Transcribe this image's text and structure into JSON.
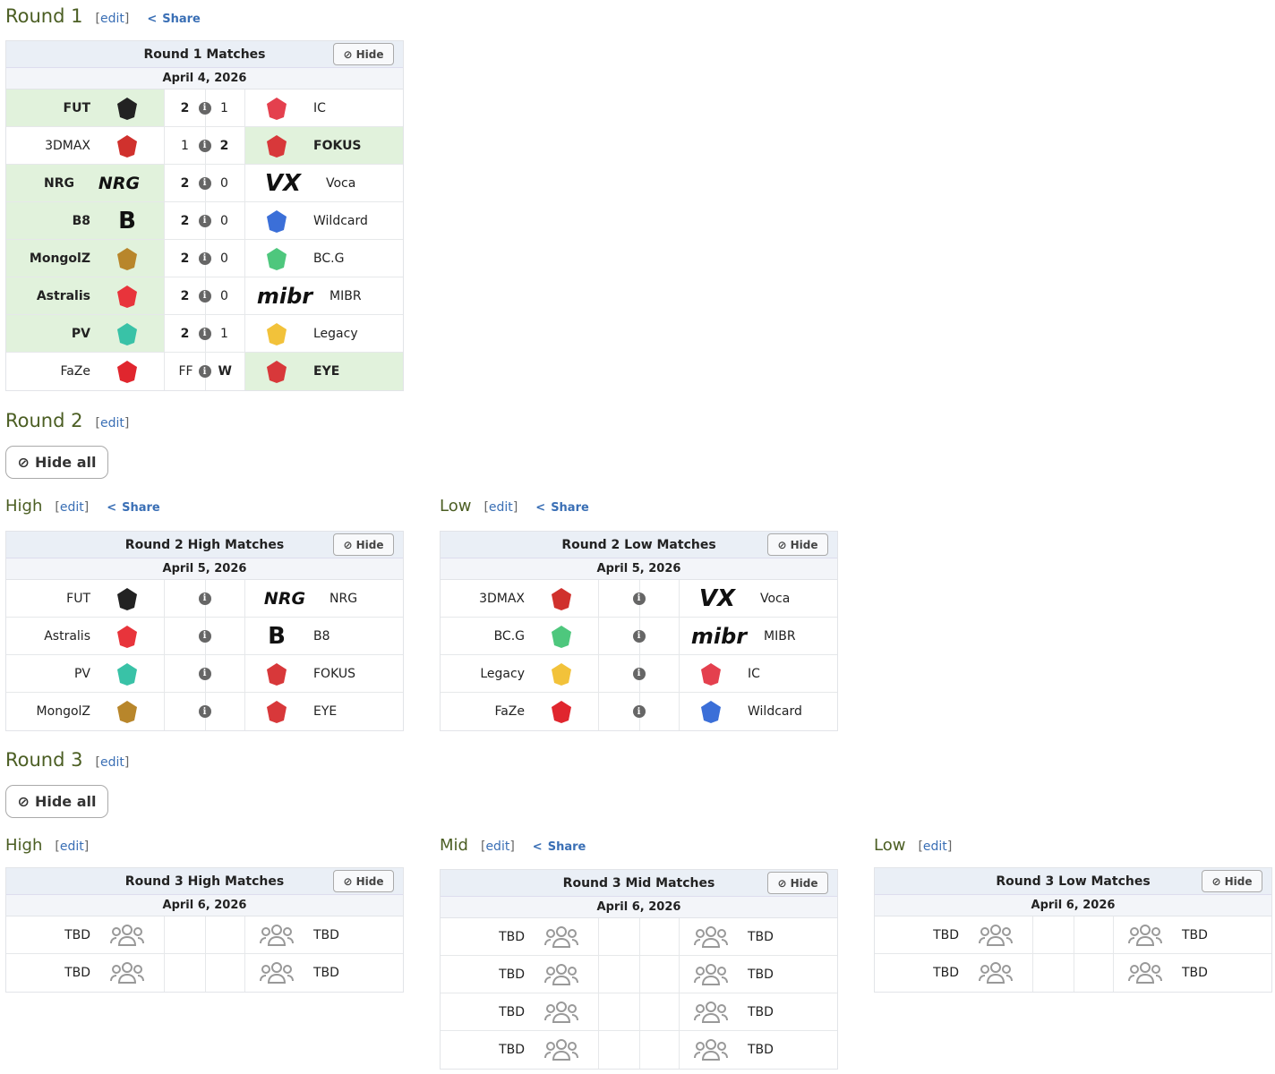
{
  "round1": {
    "title": "Round 1",
    "edit": "edit",
    "share": "Share"
  },
  "round2": {
    "title": "Round 2",
    "edit": "edit",
    "hide_all": "Hide all",
    "high": {
      "title": "High",
      "edit": "edit",
      "share": "Share"
    },
    "low": {
      "title": "Low",
      "edit": "edit",
      "share": "Share"
    }
  },
  "round3": {
    "title": "Round 3",
    "edit": "edit",
    "hide_all": "Hide all",
    "high": {
      "title": "High",
      "edit": "edit"
    },
    "mid": {
      "title": "Mid",
      "edit": "edit",
      "share": "Share"
    },
    "low": {
      "title": "Low",
      "edit": "edit"
    }
  },
  "hide_label": "Hide",
  "info_glyph": "i",
  "logo_colors": {
    "FUT": "#222",
    "IC": "#e4404e",
    "3DMAX": "#d0312d",
    "FOKUS": "#d8383a",
    "NRG": "#111",
    "Voca": "#111",
    "B8": "#111",
    "Wildcard": "#3b6fd8",
    "MongolZ": "#b8862b",
    "BC.G": "#4ec77d",
    "Astralis": "#e8343b",
    "MIBR": "#111",
    "PV": "#39c2a7",
    "Legacy": "#f2c23a",
    "FaZe": "#e0262e",
    "EYE": "#d8383a",
    "TBD": "#999"
  },
  "tables": [
    {
      "title": "Round 1 Matches",
      "date": "April 4, 2026",
      "rows": [
        {
          "left": "FUT",
          "ls": "2",
          "rs": "1",
          "right": "IC",
          "win": "left"
        },
        {
          "left": "3DMAX",
          "ls": "1",
          "rs": "2",
          "right": "FOKUS",
          "win": "right"
        },
        {
          "left": "NRG",
          "ls": "2",
          "rs": "0",
          "right": "Voca",
          "win": "left"
        },
        {
          "left": "B8",
          "ls": "2",
          "rs": "0",
          "right": "Wildcard",
          "win": "left"
        },
        {
          "left": "MongolZ",
          "ls": "2",
          "rs": "0",
          "right": "BC.G",
          "win": "left"
        },
        {
          "left": "Astralis",
          "ls": "2",
          "rs": "0",
          "right": "MIBR",
          "win": "left"
        },
        {
          "left": "PV",
          "ls": "2",
          "rs": "1",
          "right": "Legacy",
          "win": "left"
        },
        {
          "left": "FaZe",
          "ls": "FF",
          "rs": "W",
          "right": "EYE",
          "win": "right"
        }
      ]
    },
    {
      "title": "Round 2 High Matches",
      "date": "April 5, 2026",
      "rows": [
        {
          "left": "FUT",
          "right": "NRG"
        },
        {
          "left": "Astralis",
          "right": "B8"
        },
        {
          "left": "PV",
          "right": "FOKUS"
        },
        {
          "left": "MongolZ",
          "right": "EYE"
        }
      ]
    },
    {
      "title": "Round 2 Low Matches",
      "date": "April 5, 2026",
      "rows": [
        {
          "left": "3DMAX",
          "right": "Voca"
        },
        {
          "left": "BC.G",
          "right": "MIBR"
        },
        {
          "left": "Legacy",
          "right": "IC"
        },
        {
          "left": "FaZe",
          "right": "Wildcard"
        }
      ]
    },
    {
      "title": "Round 3 High Matches",
      "date": "April 6, 2026",
      "rows": [
        {
          "left": "TBD",
          "right": "TBD"
        },
        {
          "left": "TBD",
          "right": "TBD"
        }
      ]
    },
    {
      "title": "Round 3 Mid Matches",
      "date": "April 6, 2026",
      "rows": [
        {
          "left": "TBD",
          "right": "TBD"
        },
        {
          "left": "TBD",
          "right": "TBD"
        },
        {
          "left": "TBD",
          "right": "TBD"
        },
        {
          "left": "TBD",
          "right": "TBD"
        }
      ]
    },
    {
      "title": "Round 3 Low Matches",
      "date": "April 6, 2026",
      "rows": [
        {
          "left": "TBD",
          "right": "TBD"
        },
        {
          "left": "TBD",
          "right": "TBD"
        }
      ]
    }
  ]
}
